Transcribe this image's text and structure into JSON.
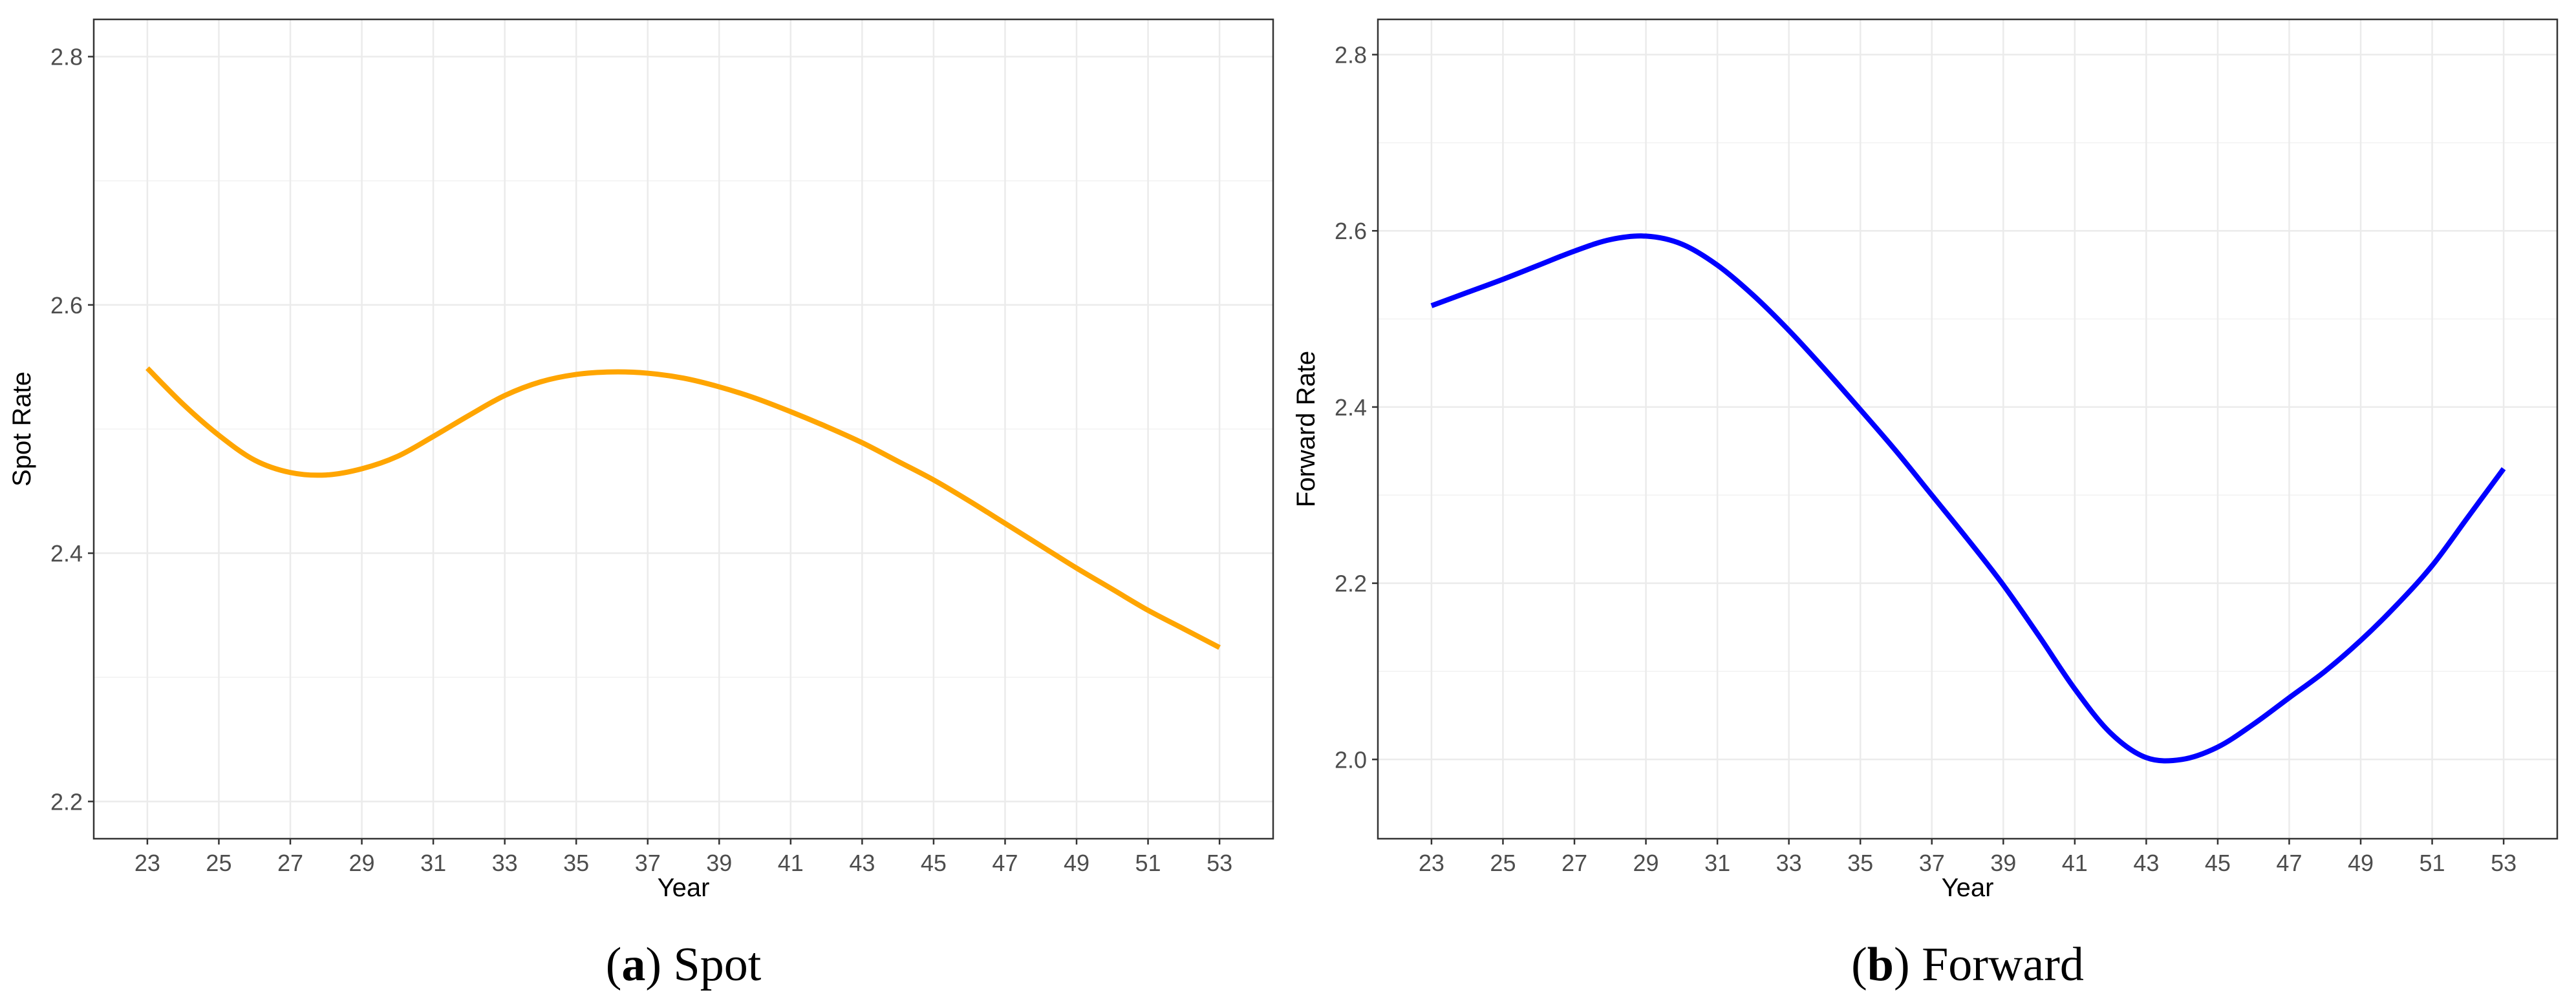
{
  "chart_data": [
    {
      "type": "line",
      "caption_letter": "a",
      "caption_text": "Spot",
      "xlabel": "Year",
      "ylabel": "Spot Rate",
      "xlim": [
        21.5,
        54.5
      ],
      "ylim": [
        2.17,
        2.83
      ],
      "x_ticks": [
        23,
        25,
        27,
        29,
        31,
        33,
        35,
        37,
        39,
        41,
        43,
        45,
        47,
        49,
        51,
        53
      ],
      "x_tick_labels": [
        "23",
        "25",
        "27",
        "29",
        "31",
        "33",
        "35",
        "37",
        "39",
        "41",
        "43",
        "45",
        "47",
        "49",
        "51",
        "53"
      ],
      "y_ticks": [
        2.2,
        2.4,
        2.6,
        2.8
      ],
      "y_tick_labels": [
        "2.2",
        "2.4",
        "2.6",
        "2.8"
      ],
      "grid": true,
      "series": [
        {
          "color": "#FFA500",
          "x": [
            23,
            24,
            25,
            26,
            27,
            28,
            29,
            30,
            31,
            32,
            33,
            34,
            35,
            36,
            37,
            38,
            39,
            40,
            41,
            42,
            43,
            44,
            45,
            46,
            47,
            48,
            49,
            50,
            51,
            52,
            53
          ],
          "y": [
            2.549,
            2.52,
            2.495,
            2.475,
            2.465,
            2.463,
            2.468,
            2.478,
            2.494,
            2.511,
            2.527,
            2.538,
            2.544,
            2.546,
            2.545,
            2.541,
            2.534,
            2.525,
            2.514,
            2.502,
            2.489,
            2.474,
            2.459,
            2.442,
            2.424,
            2.406,
            2.388,
            2.371,
            2.354,
            2.339,
            2.324
          ]
        }
      ]
    },
    {
      "type": "line",
      "caption_letter": "b",
      "caption_text": "Forward",
      "xlabel": "Year",
      "ylabel": "Forward Rate",
      "xlim": [
        21.5,
        54.5
      ],
      "ylim": [
        1.91,
        2.84
      ],
      "x_ticks": [
        23,
        25,
        27,
        29,
        31,
        33,
        35,
        37,
        39,
        41,
        43,
        45,
        47,
        49,
        51,
        53
      ],
      "x_tick_labels": [
        "23",
        "25",
        "27",
        "29",
        "31",
        "33",
        "35",
        "37",
        "39",
        "41",
        "43",
        "45",
        "47",
        "49",
        "51",
        "53"
      ],
      "y_ticks": [
        2.0,
        2.2,
        2.4,
        2.6,
        2.8
      ],
      "y_tick_labels": [
        "2.0",
        "2.2",
        "2.4",
        "2.6",
        "2.8"
      ],
      "grid": true,
      "series": [
        {
          "color": "#0000FF",
          "x": [
            23,
            24,
            25,
            26,
            27,
            28,
            29,
            30,
            31,
            32,
            33,
            34,
            35,
            36,
            37,
            38,
            39,
            40,
            41,
            42,
            43,
            44,
            45,
            46,
            47,
            48,
            49,
            50,
            51,
            52,
            53
          ],
          "y": [
            2.515,
            2.53,
            2.545,
            2.561,
            2.577,
            2.59,
            2.594,
            2.585,
            2.561,
            2.527,
            2.487,
            2.443,
            2.397,
            2.35,
            2.3,
            2.25,
            2.198,
            2.14,
            2.08,
            2.03,
            2.002,
            2.0,
            2.014,
            2.04,
            2.07,
            2.1,
            2.135,
            2.175,
            2.22,
            2.275,
            2.33
          ]
        }
      ]
    }
  ]
}
